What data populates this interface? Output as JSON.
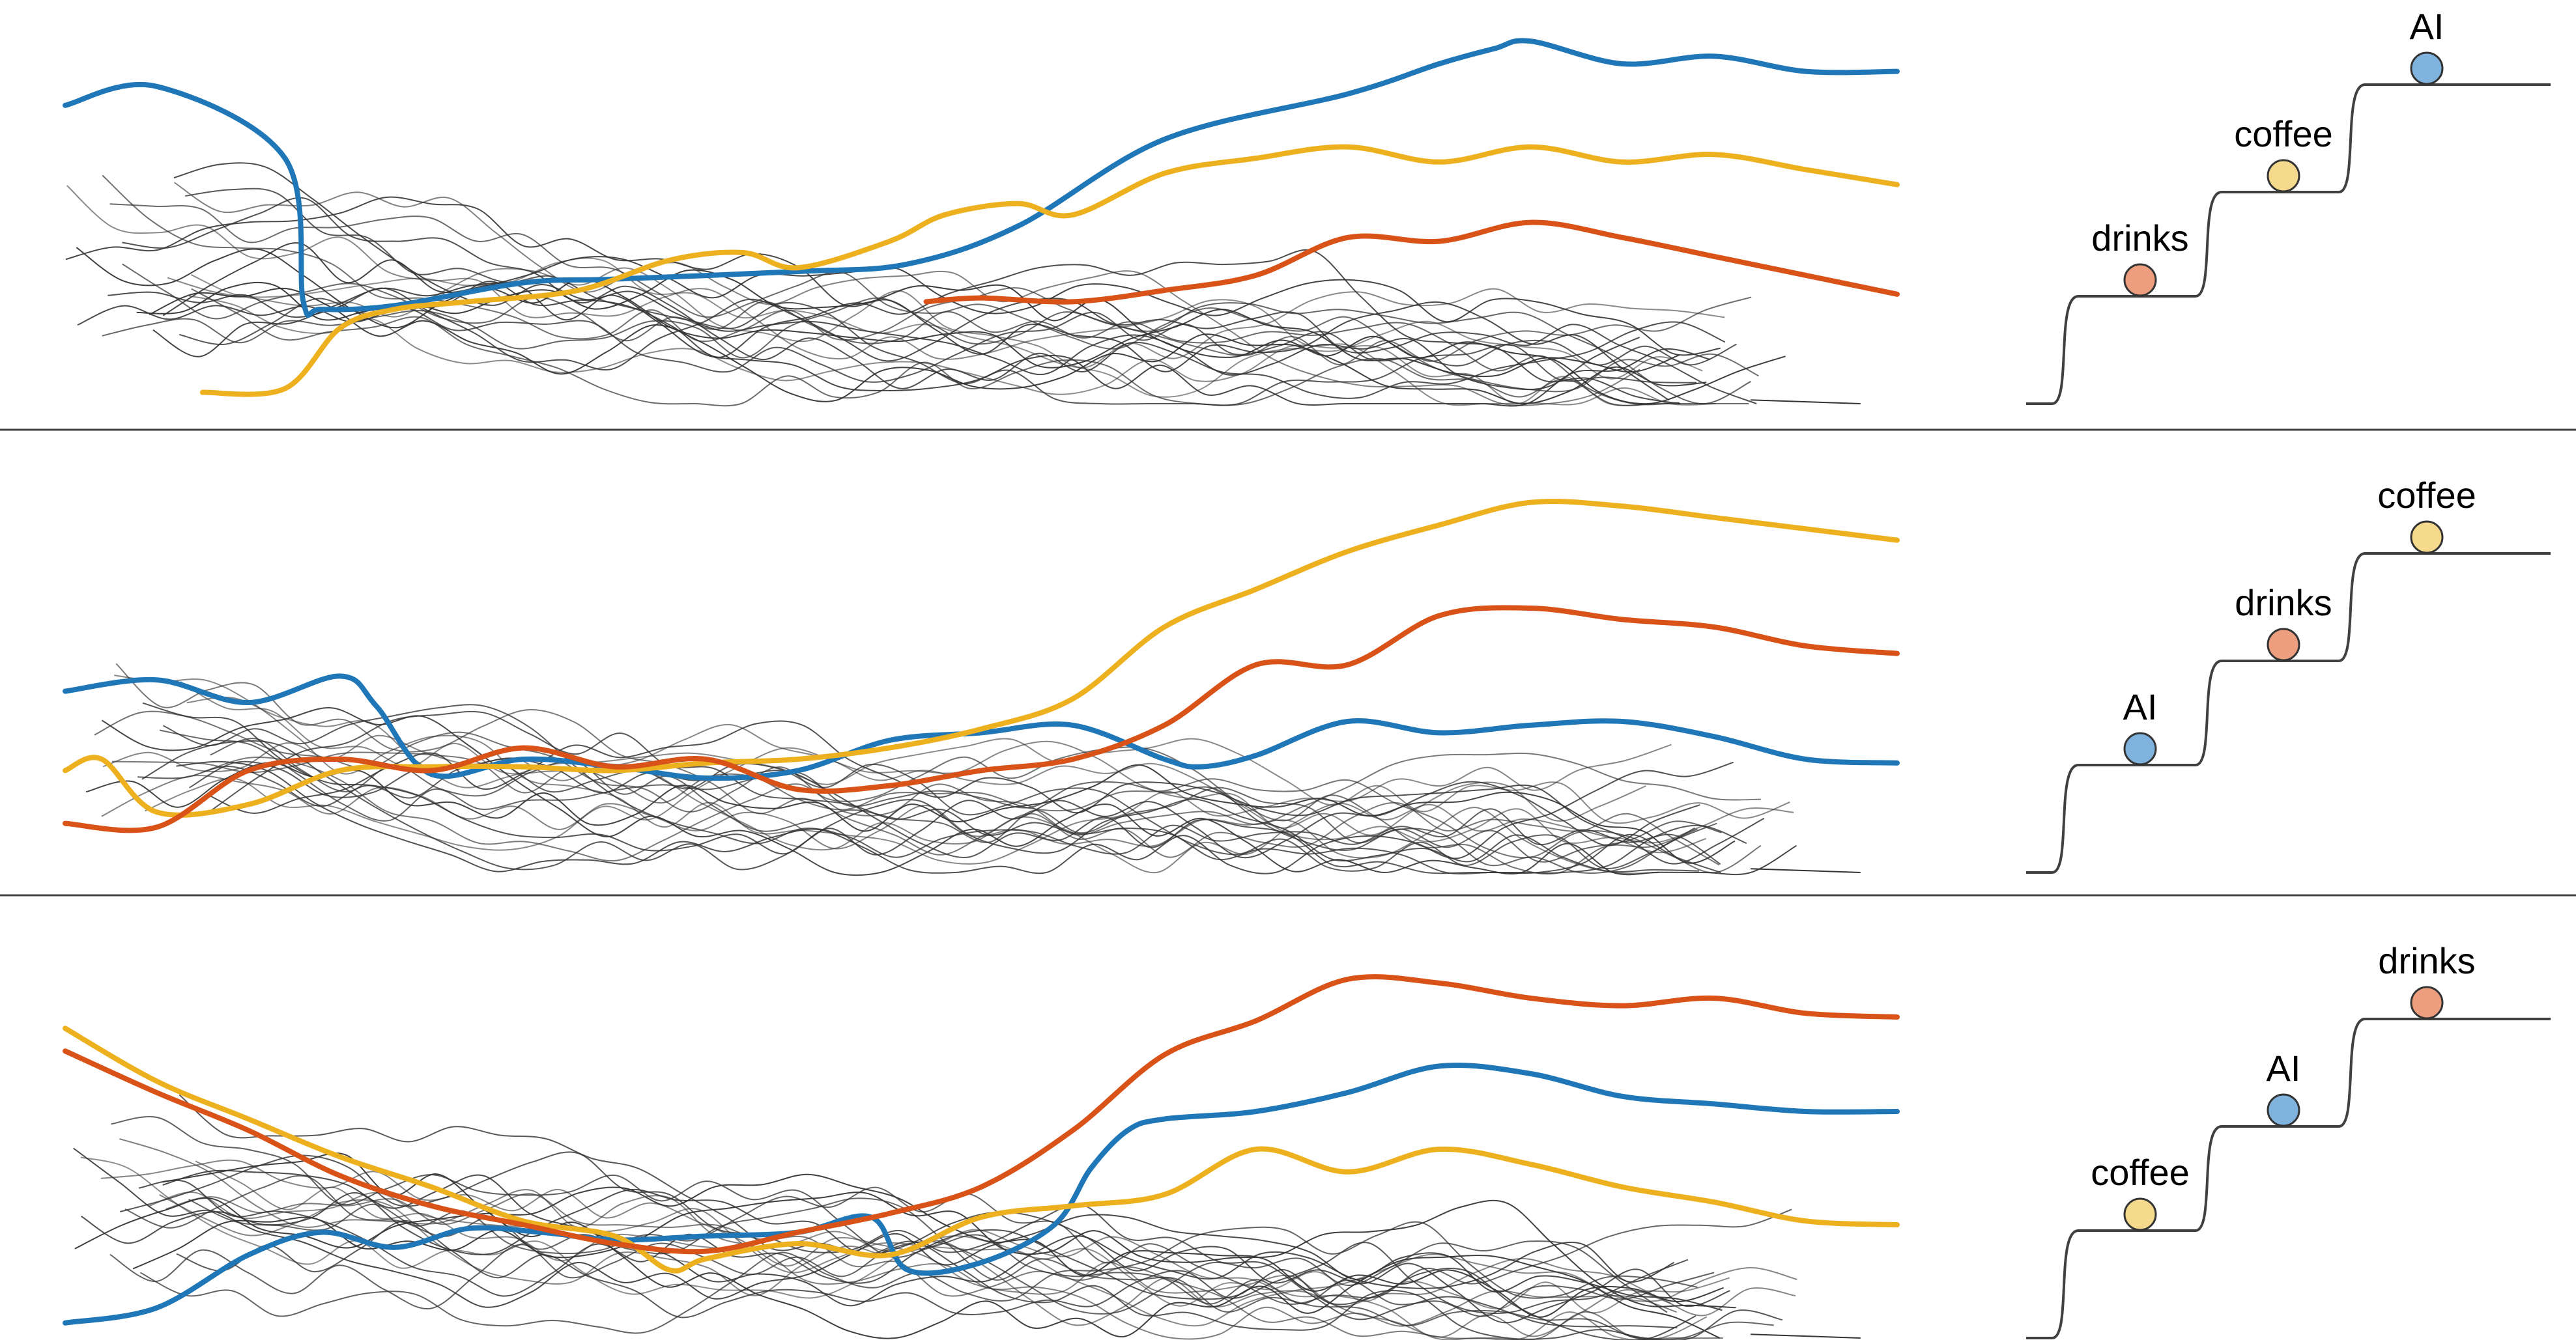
{
  "colors": {
    "AI": "#1F77B8",
    "coffee": "#EDB120",
    "drinks": "#D95319",
    "AI_dot": "#7FB3DE",
    "coffee_dot": "#F5D98C",
    "drinks_dot": "#EC9E7E",
    "background_lines": "#333333",
    "staircase": "#404040"
  },
  "chart_data": [
    {
      "type": "line",
      "panel": 1,
      "x_range": [
        0,
        100
      ],
      "y_range": [
        0,
        100
      ],
      "series": [
        {
          "name": "AI",
          "color_key": "AI",
          "x": [
            0,
            5,
            12,
            13,
            14,
            18,
            25,
            30,
            40,
            46,
            52,
            60,
            70,
            75,
            78,
            80,
            85,
            90,
            95,
            100
          ],
          "y": [
            79,
            84,
            65,
            27,
            25,
            26,
            32,
            33,
            35,
            37,
            47,
            70,
            82,
            90,
            94,
            96,
            90,
            92,
            88,
            88
          ]
        },
        {
          "name": "coffee",
          "color_key": "coffee",
          "x": [
            7.5,
            12,
            15,
            18,
            22,
            28,
            33,
            37,
            40,
            45,
            48,
            52,
            55,
            60,
            65,
            70,
            75,
            80,
            85,
            90,
            95,
            100
          ],
          "y": [
            3,
            4,
            20,
            25,
            27,
            30,
            38,
            40,
            36,
            43,
            50,
            53,
            50,
            61,
            65,
            68,
            64,
            68,
            64,
            66,
            62,
            58
          ]
        },
        {
          "name": "drinks",
          "color_key": "drinks",
          "x": [
            47,
            50,
            55,
            60,
            65,
            70,
            75,
            80,
            85,
            90,
            95,
            100
          ],
          "y": [
            27,
            28,
            27,
            30,
            34,
            44,
            43,
            48,
            44,
            39,
            34,
            29
          ]
        }
      ],
      "staircase": {
        "order_low_to_high": [
          "drinks",
          "coffee",
          "AI"
        ]
      }
    },
    {
      "type": "line",
      "panel": 2,
      "x_range": [
        0,
        100
      ],
      "y_range": [
        0,
        100
      ],
      "series": [
        {
          "name": "AI",
          "color_key": "AI",
          "x": [
            0,
            5,
            10,
            15,
            17,
            20,
            25,
            30,
            35,
            40,
            45,
            50,
            55,
            60,
            62,
            65,
            70,
            75,
            80,
            85,
            90,
            95,
            100
          ],
          "y": [
            48,
            51,
            45,
            52,
            44,
            26,
            30,
            28,
            25,
            27,
            35,
            37,
            39,
            30,
            28,
            31,
            40,
            37,
            39,
            40,
            36,
            30,
            29
          ]
        },
        {
          "name": "coffee",
          "color_key": "coffee",
          "x": [
            0,
            2,
            5,
            10,
            15,
            20,
            25,
            30,
            35,
            40,
            45,
            50,
            55,
            60,
            65,
            70,
            75,
            80,
            85,
            90,
            95,
            100
          ],
          "y": [
            27,
            30,
            16,
            18,
            27,
            28,
            28,
            27,
            29,
            30,
            33,
            38,
            46,
            65,
            75,
            85,
            92,
            98,
            97,
            94,
            91,
            88
          ]
        },
        {
          "name": "drinks",
          "color_key": "drinks",
          "x": [
            0,
            5,
            10,
            15,
            20,
            25,
            30,
            35,
            40,
            45,
            50,
            55,
            60,
            65,
            70,
            75,
            80,
            85,
            90,
            95,
            100
          ],
          "y": [
            13,
            12,
            27,
            30,
            27,
            33,
            28,
            30,
            22,
            23,
            27,
            30,
            39,
            55,
            55,
            68,
            70,
            67,
            65,
            60,
            58
          ]
        }
      ],
      "staircase": {
        "order_low_to_high": [
          "AI",
          "drinks",
          "coffee"
        ]
      }
    },
    {
      "type": "line",
      "panel": 3,
      "x_range": [
        0,
        100
      ],
      "y_range": [
        0,
        100
      ],
      "series": [
        {
          "name": "AI",
          "color_key": "AI",
          "x": [
            0,
            5,
            10,
            14,
            18,
            22,
            26,
            30,
            35,
            40,
            44,
            46,
            50,
            54,
            56,
            58,
            60,
            65,
            70,
            75,
            80,
            85,
            90,
            95,
            100
          ],
          "y": [
            4,
            8,
            22,
            28,
            24,
            29,
            28,
            26,
            27,
            28,
            32,
            18,
            20,
            30,
            45,
            55,
            58,
            60,
            65,
            72,
            70,
            64,
            62,
            60,
            60
          ]
        },
        {
          "name": "coffee",
          "color_key": "coffee",
          "x": [
            0,
            5,
            10,
            15,
            20,
            25,
            30,
            33,
            35,
            40,
            45,
            50,
            55,
            60,
            65,
            70,
            75,
            80,
            85,
            90,
            95,
            100
          ],
          "y": [
            82,
            68,
            58,
            48,
            40,
            31,
            27,
            18,
            21,
            25,
            22,
            32,
            35,
            38,
            50,
            44,
            50,
            46,
            40,
            36,
            31,
            30
          ]
        },
        {
          "name": "drinks",
          "color_key": "drinks",
          "x": [
            0,
            5,
            10,
            15,
            20,
            25,
            30,
            35,
            40,
            45,
            50,
            55,
            60,
            65,
            70,
            75,
            80,
            85,
            90,
            95,
            100
          ],
          "y": [
            76,
            65,
            55,
            43,
            35,
            30,
            25,
            23,
            28,
            33,
            40,
            55,
            75,
            84,
            95,
            94,
            90,
            88,
            90,
            86,
            85
          ]
        }
      ],
      "staircase": {
        "order_low_to_high": [
          "coffee",
          "AI",
          "drinks"
        ]
      }
    }
  ]
}
